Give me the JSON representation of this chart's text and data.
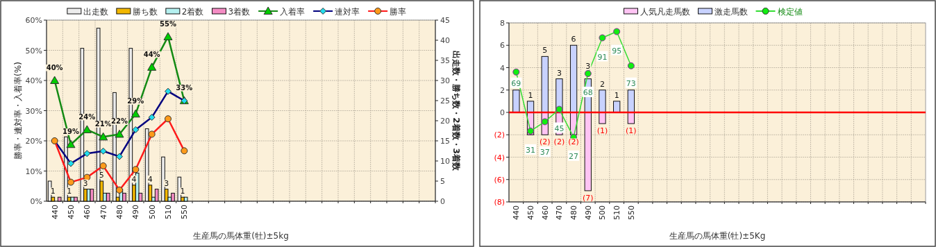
{
  "chart_data": [
    {
      "type": "bar",
      "xlabel": "生産馬の馬体重(牡)±5kg",
      "ylabel": "勝率・連対率・入着率(%)",
      "y2label": "出走数・勝ち数・2着数・3着数",
      "grid": true,
      "legend": "top",
      "categories": [
        "440",
        "450",
        "460",
        "470",
        "480",
        "490",
        "500",
        "510",
        "550",
        null,
        null,
        null,
        null,
        null,
        null,
        null,
        null,
        null,
        null,
        null,
        null,
        null,
        null,
        null
      ],
      "ylim": [
        0,
        60
      ],
      "yticks": [
        {
          "value": 0,
          "label": "0%"
        },
        {
          "value": 10,
          "label": "10%"
        },
        {
          "value": 20,
          "label": "20%"
        },
        {
          "value": 30,
          "label": "30%"
        },
        {
          "value": 40,
          "label": "40%"
        },
        {
          "value": 50,
          "label": "50%"
        },
        {
          "value": 60,
          "label": "60%"
        }
      ],
      "y2lim": [
        0,
        45
      ],
      "y2ticks": [
        0,
        5,
        10,
        15,
        20,
        25,
        30,
        35,
        40,
        45
      ],
      "series": [
        {
          "name": "出走数",
          "color": "#ececec",
          "axis": "y2",
          "values": [
            5,
            16,
            38,
            43,
            27,
            38,
            18,
            11,
            6,
            null,
            null,
            null,
            null,
            null,
            null,
            null,
            null,
            null,
            null,
            null,
            null,
            null,
            null,
            null
          ]
        },
        {
          "name": "勝ち数",
          "color": "#f2b700",
          "axis": "y2",
          "values": [
            1,
            1,
            3,
            5,
            1,
            4,
            4,
            3,
            1,
            null,
            null,
            null,
            null,
            null,
            null,
            null,
            null,
            null,
            null,
            null,
            null,
            null,
            null,
            null
          ],
          "value_labels": [
            "1",
            "1",
            "3",
            "5",
            null,
            "4",
            "4",
            "3",
            "1",
            null,
            null,
            null,
            null,
            null,
            null,
            null,
            null,
            null,
            null,
            null,
            null,
            null,
            null,
            null
          ]
        },
        {
          "name": "2着数",
          "color": "#b4f0f0",
          "axis": "y2",
          "values": [
            0,
            1,
            3,
            2,
            3,
            7,
            1,
            1,
            1,
            null,
            null,
            null,
            null,
            null,
            null,
            null,
            null,
            null,
            null,
            null,
            null,
            null,
            null,
            null
          ]
        },
        {
          "name": "3着数",
          "color": "#f48cc4",
          "axis": "y2",
          "values": [
            1,
            1,
            3,
            2,
            2,
            2,
            3,
            2,
            0,
            null,
            null,
            null,
            null,
            null,
            null,
            null,
            null,
            null,
            null,
            null,
            null,
            null,
            null,
            null
          ]
        },
        {
          "name": "入着率",
          "type": "line",
          "marker": "triangle",
          "color": "#138a13",
          "colors": [
            "#00cc00",
            "#00cc00",
            "#00cc00",
            "#00cc00",
            "#00cc00",
            "#00cc00",
            "#00cc00",
            "#00cc00",
            "#00cc00",
            null,
            null,
            null,
            null,
            null,
            null,
            null,
            null,
            null,
            null,
            null,
            null,
            null,
            null,
            null
          ],
          "values": [
            40,
            18.8,
            23.7,
            21.3,
            22.2,
            28.9,
            44.4,
            54.5,
            33.3,
            null,
            null,
            null,
            null,
            null,
            null,
            null,
            null,
            null,
            null,
            null,
            null,
            null,
            null,
            null
          ],
          "value_labels": [
            "40%",
            "19%",
            "24%",
            "21%",
            "22%",
            "29%",
            "44%",
            "55%",
            "33%",
            null,
            null,
            null,
            null,
            null,
            null,
            null,
            null,
            null,
            null,
            null,
            null,
            null,
            null,
            null
          ]
        },
        {
          "name": "連対率",
          "type": "line",
          "marker": "diamond",
          "color": "#00007f",
          "colors": [
            "#22ddee",
            "#22ddee",
            "#22ddee",
            "#22ddee",
            "#22ddee",
            "#22ddee",
            "#22ddee",
            "#22ddee",
            "#22ddee",
            null,
            null,
            null,
            null,
            null,
            null,
            null,
            null,
            null,
            null,
            null,
            null,
            null,
            null,
            null
          ],
          "values": [
            20,
            12.5,
            15.8,
            16.6,
            14.8,
            23.7,
            27.8,
            36.4,
            33.3,
            null,
            null,
            null,
            null,
            null,
            null,
            null,
            null,
            null,
            null,
            null,
            null,
            null,
            null,
            null
          ]
        },
        {
          "name": "勝率",
          "type": "line",
          "marker": "circle",
          "color": "#ff1a1a",
          "colors": [
            "#ff9a1a",
            "#ff9a1a",
            "#ff9a1a",
            "#ff9a1a",
            "#ff9a1a",
            "#ff9a1a",
            "#ff9a1a",
            "#ff9a1a",
            "#ff9a1a",
            null,
            null,
            null,
            null,
            null,
            null,
            null,
            null,
            null,
            null,
            null,
            null,
            null,
            null,
            null
          ],
          "values": [
            20,
            6.3,
            7.9,
            11.7,
            3.7,
            10.5,
            22.2,
            27.3,
            16.7,
            null,
            null,
            null,
            null,
            null,
            null,
            null,
            null,
            null,
            null,
            null,
            null,
            null,
            null,
            null
          ]
        }
      ]
    },
    {
      "type": "bar",
      "xlabel": "生産馬の馬体重(牡)±5Kg",
      "grid": true,
      "legend": "top",
      "stacked": true,
      "categories": [
        "440",
        "450",
        "460",
        "470",
        "480",
        "490",
        "500",
        "510",
        "550",
        null,
        null,
        null,
        null,
        null,
        null,
        null,
        null,
        null,
        null,
        null,
        null,
        null,
        null,
        null,
        null,
        null,
        null,
        null,
        null
      ],
      "ylim": [
        -8,
        8
      ],
      "yticks": [
        {
          "value": -8,
          "label": "(8)"
        },
        {
          "value": -6,
          "label": "(6)"
        },
        {
          "value": -4,
          "label": "(4)"
        },
        {
          "value": -2,
          "label": "(2)"
        },
        0,
        2,
        4,
        6,
        8
      ],
      "y2lim": [
        -14.6,
        100.6
      ],
      "ref_lines": [
        {
          "axis": "y",
          "value": 0,
          "color": "#ff0000"
        }
      ],
      "series": [
        {
          "name": "人気凡走馬数",
          "color": "#ffc4f4",
          "values": [
            0,
            -2,
            -2,
            -2,
            -2,
            -7,
            -1,
            0,
            -1,
            null,
            null,
            null,
            null,
            null,
            null,
            null,
            null,
            null,
            null,
            null,
            null,
            null,
            null,
            null,
            null,
            null,
            null,
            null,
            null
          ],
          "value_labels": [
            null,
            null,
            "(2)",
            "(2)",
            "(2)",
            "(7)",
            "(1)",
            null,
            "(1)",
            null,
            null,
            null,
            null,
            null,
            null,
            null,
            null,
            null,
            null,
            null,
            null,
            null,
            null,
            null,
            null,
            null,
            null,
            null,
            null
          ]
        },
        {
          "name": "激走馬数",
          "color": "#c8d2ff",
          "values": [
            2,
            1,
            5,
            3,
            6,
            3,
            2,
            1,
            2,
            null,
            null,
            null,
            null,
            null,
            null,
            null,
            null,
            null,
            null,
            null,
            null,
            null,
            null,
            null,
            null,
            null,
            null,
            null,
            null
          ],
          "value_labels": [
            null,
            "1",
            "5",
            "3",
            "6",
            "3",
            "2",
            "1",
            null,
            null,
            null,
            null,
            null,
            null,
            null,
            null,
            null,
            null,
            null,
            null,
            null,
            null,
            null,
            null,
            null,
            null,
            null,
            null,
            null
          ]
        },
        {
          "name": "検定値",
          "type": "line",
          "marker": "circle",
          "axis": "y2",
          "color": "#33dd33",
          "colors": [
            "#11ee11",
            "#11ee11",
            "#11ee11",
            "#11ee11",
            "#11ee11",
            "#11ee11",
            "#11ee11",
            "#11ee11",
            "#11ee11",
            null,
            null,
            null,
            null,
            null,
            null,
            null,
            null,
            null,
            null,
            null,
            null,
            null,
            null,
            null,
            null,
            null,
            null,
            null,
            null
          ],
          "values": [
            69,
            31,
            37,
            45,
            27,
            68,
            91,
            95,
            73,
            null,
            null,
            null,
            null,
            null,
            null,
            null,
            null,
            null,
            null,
            null,
            null,
            null,
            null,
            null,
            null,
            null,
            null,
            null,
            null
          ],
          "value_labels": [
            "69",
            "31",
            "37",
            "45",
            "27",
            "68",
            "91",
            "95",
            "73",
            null,
            null,
            null,
            null,
            null,
            null,
            null,
            null,
            null,
            null,
            null,
            null,
            null,
            null,
            null,
            null,
            null,
            null,
            null,
            null
          ]
        }
      ]
    }
  ]
}
